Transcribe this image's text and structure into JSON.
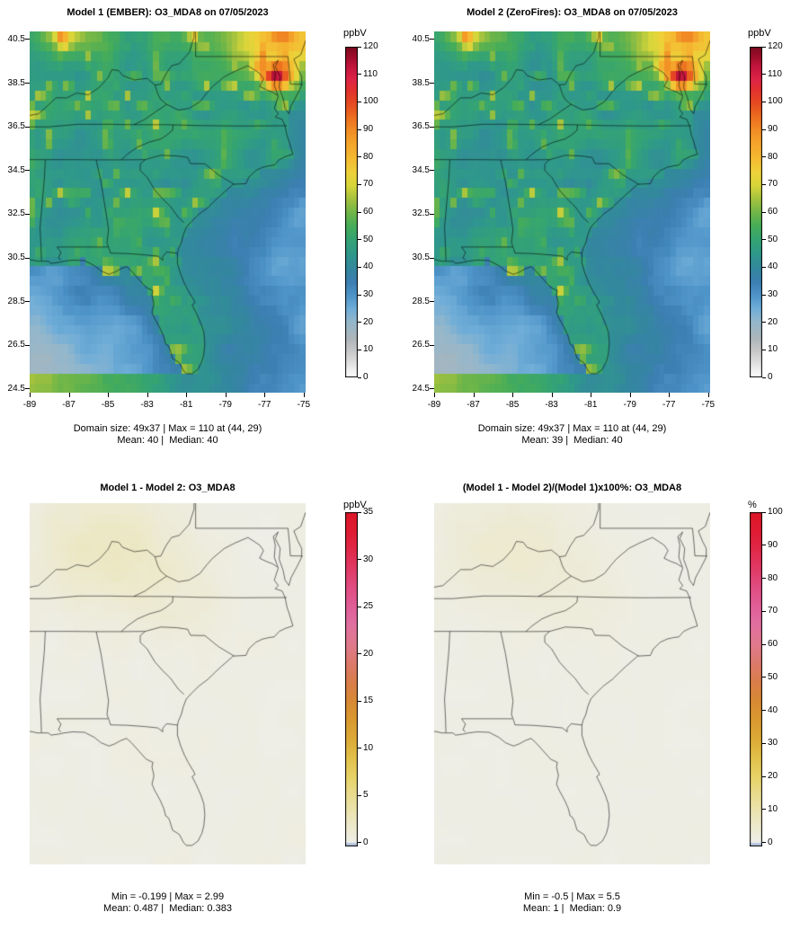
{
  "figure": {
    "background": "#ffffff"
  },
  "chart_data": [
    {
      "type": "heatmap",
      "position": "top-left",
      "title": "Model 1 (EMBER): O3_MDA8 on 07/05/2023",
      "model": "Model 1 (EMBER)",
      "variable": "O3_MDA8",
      "date": "07/05/2023",
      "grid_cols": 49,
      "grid_rows": 37,
      "field": "o3_model1",
      "x": {
        "ticks": [
          -89,
          -87,
          -85,
          -83,
          -81,
          -79,
          -77,
          -75
        ],
        "range": [
          -89.0,
          -74.9
        ]
      },
      "y": {
        "ticks": [
          24.5,
          26.5,
          28.5,
          30.5,
          32.5,
          34.5,
          36.5,
          38.5,
          40.5
        ],
        "range": [
          24.33,
          40.87
        ]
      },
      "colorbar": {
        "label": "ppbV",
        "min": 0,
        "max": 120,
        "ticks": [
          0,
          10,
          20,
          30,
          40,
          50,
          60,
          70,
          80,
          90,
          100,
          110,
          120
        ],
        "stops": [
          [
            0,
            "#ffffff"
          ],
          [
            0.04,
            "#e3e3e3"
          ],
          [
            0.08,
            "#c8c8c8"
          ],
          [
            0.12,
            "#adb5ba"
          ],
          [
            0.17,
            "#93b7cc"
          ],
          [
            0.21,
            "#6fadd8"
          ],
          [
            0.25,
            "#4e94c8"
          ],
          [
            0.29,
            "#3c7fb2"
          ],
          [
            0.33,
            "#33879e"
          ],
          [
            0.375,
            "#2f988b"
          ],
          [
            0.42,
            "#35a472"
          ],
          [
            0.46,
            "#47ad58"
          ],
          [
            0.5,
            "#71b648"
          ],
          [
            0.54,
            "#a3c23e"
          ],
          [
            0.58,
            "#d6d63a"
          ],
          [
            0.62,
            "#eed23a"
          ],
          [
            0.66,
            "#f4bc32"
          ],
          [
            0.71,
            "#f4a42b"
          ],
          [
            0.75,
            "#f18c25"
          ],
          [
            0.79,
            "#ec6c1f"
          ],
          [
            0.83,
            "#e64b22"
          ],
          [
            0.87,
            "#e2312f"
          ],
          [
            0.9,
            "#df2546"
          ],
          [
            0.94,
            "#c4163e"
          ],
          [
            0.97,
            "#a00d2c"
          ],
          [
            1,
            "#7c0a20"
          ]
        ]
      },
      "stats": {
        "domain_size": "49x37",
        "max": 110,
        "max_location_grid": "(44, 29)",
        "mean": 40,
        "median": 40
      },
      "caption1": "Domain size: 49x37 | Max = 110 at (44, 29)",
      "caption2": "Mean: 40 |  Median: 40",
      "notes": "Ozone MDA8 raster: teal/green 40-55 over land with yellow 60-75 patches, blue 25-40 offshore Atlantic, gray 5-20 over Gulf, orange-red 80-110 blob near Chesapeake Bay, max 110"
    },
    {
      "type": "heatmap",
      "position": "top-right",
      "title": "Model 2 (ZeroFires): O3_MDA8 on 07/05/2023",
      "model": "Model 2 (ZeroFires)",
      "variable": "O3_MDA8",
      "date": "07/05/2023",
      "grid_cols": 49,
      "grid_rows": 37,
      "field": "o3_model2",
      "x": {
        "ticks": [
          -89,
          -87,
          -85,
          -83,
          -81,
          -79,
          -77,
          -75
        ],
        "range": [
          -89.0,
          -74.9
        ]
      },
      "y": {
        "ticks": [
          24.5,
          26.5,
          28.5,
          30.5,
          32.5,
          34.5,
          36.5,
          38.5,
          40.5
        ],
        "range": [
          24.33,
          40.87
        ]
      },
      "colorbar": {
        "label": "ppbV",
        "min": 0,
        "max": 120,
        "ticks": [
          0,
          10,
          20,
          30,
          40,
          50,
          60,
          70,
          80,
          90,
          100,
          110,
          120
        ],
        "stops": [
          [
            0,
            "#ffffff"
          ],
          [
            0.04,
            "#e3e3e3"
          ],
          [
            0.08,
            "#c8c8c8"
          ],
          [
            0.12,
            "#adb5ba"
          ],
          [
            0.17,
            "#93b7cc"
          ],
          [
            0.21,
            "#6fadd8"
          ],
          [
            0.25,
            "#4e94c8"
          ],
          [
            0.29,
            "#3c7fb2"
          ],
          [
            0.33,
            "#33879e"
          ],
          [
            0.375,
            "#2f988b"
          ],
          [
            0.42,
            "#35a472"
          ],
          [
            0.46,
            "#47ad58"
          ],
          [
            0.5,
            "#71b648"
          ],
          [
            0.54,
            "#a3c23e"
          ],
          [
            0.58,
            "#d6d63a"
          ],
          [
            0.62,
            "#eed23a"
          ],
          [
            0.66,
            "#f4bc32"
          ],
          [
            0.71,
            "#f4a42b"
          ],
          [
            0.75,
            "#f18c25"
          ],
          [
            0.79,
            "#ec6c1f"
          ],
          [
            0.83,
            "#e64b22"
          ],
          [
            0.87,
            "#e2312f"
          ],
          [
            0.9,
            "#df2546"
          ],
          [
            0.94,
            "#c4163e"
          ],
          [
            0.97,
            "#a00d2c"
          ],
          [
            1,
            "#7c0a20"
          ]
        ]
      },
      "stats": {
        "domain_size": "49x37",
        "max": 110,
        "max_location_grid": "(44, 29)",
        "mean": 39,
        "median": 40
      },
      "caption1": "Domain size: 49x37 | Max = 110 at (44, 29)",
      "caption2": "Mean: 39 |  Median: 40",
      "notes": "Nearly identical to Model 1; mean lower by 1 ppbV"
    },
    {
      "type": "heatmap",
      "position": "bottom-left",
      "title": "Model 1 - Model 2: O3_MDA8",
      "variable": "O3_MDA8",
      "grid_cols": 49,
      "grid_rows": 37,
      "field": "difference",
      "x": {
        "range": [
          -89.0,
          -74.9
        ]
      },
      "y": {
        "range": [
          24.33,
          40.87
        ]
      },
      "colorbar": {
        "label": "ppbV",
        "min": -0.4,
        "max": 35,
        "ticks": [
          0,
          5,
          10,
          15,
          20,
          25,
          30,
          35
        ],
        "under_color": "#b8c7e2",
        "stops": [
          [
            0,
            "#eeeee8"
          ],
          [
            0.04,
            "#edead2"
          ],
          [
            0.09,
            "#ebe4b4"
          ],
          [
            0.14,
            "#e9dd92"
          ],
          [
            0.2,
            "#e7d367"
          ],
          [
            0.26,
            "#e2c04a"
          ],
          [
            0.31,
            "#dcab38"
          ],
          [
            0.37,
            "#d99a30"
          ],
          [
            0.43,
            "#d88934"
          ],
          [
            0.49,
            "#d97d4c"
          ],
          [
            0.54,
            "#dc7a6a"
          ],
          [
            0.6,
            "#df7a8c"
          ],
          [
            0.66,
            "#e070a0"
          ],
          [
            0.71,
            "#e0609a"
          ],
          [
            0.77,
            "#e04e84"
          ],
          [
            0.83,
            "#e03a66"
          ],
          [
            0.89,
            "#e02848"
          ],
          [
            0.94,
            "#df1c34"
          ],
          [
            1,
            "#dd1626"
          ]
        ]
      },
      "stats": {
        "min": -0.199,
        "max": 2.99,
        "mean": 0.487,
        "median": 0.383
      },
      "caption1": "Min = -0.199 | Max = 2.99",
      "caption2": "Mean: 0.487 |  Median: 0.383",
      "notes": "Nearly uniform light gray (diff ~0-3 ppbV) with faint pale-yellow tint over the northwest/central inland area"
    },
    {
      "type": "heatmap",
      "position": "bottom-right",
      "title": "(Model 1 - Model 2)/(Model 1)x100%: O3_MDA8",
      "variable": "O3_MDA8",
      "grid_cols": 49,
      "grid_rows": 37,
      "field": "percent_difference",
      "x": {
        "range": [
          -89.0,
          -74.9
        ]
      },
      "y": {
        "range": [
          24.33,
          40.87
        ]
      },
      "colorbar": {
        "label": "%",
        "min": -1.2,
        "max": 100,
        "ticks": [
          0,
          10,
          20,
          30,
          40,
          50,
          60,
          70,
          80,
          90,
          100
        ],
        "under_color": "#b8c7e2",
        "stops": [
          [
            0,
            "#eeeee8"
          ],
          [
            0.04,
            "#edead2"
          ],
          [
            0.09,
            "#ebe4b4"
          ],
          [
            0.14,
            "#e9dd92"
          ],
          [
            0.2,
            "#e7d367"
          ],
          [
            0.26,
            "#e2c04a"
          ],
          [
            0.31,
            "#dcab38"
          ],
          [
            0.37,
            "#d99a30"
          ],
          [
            0.43,
            "#d88934"
          ],
          [
            0.49,
            "#d97d4c"
          ],
          [
            0.54,
            "#dc7a6a"
          ],
          [
            0.6,
            "#df7a8c"
          ],
          [
            0.66,
            "#e070a0"
          ],
          [
            0.71,
            "#e0609a"
          ],
          [
            0.77,
            "#e04e84"
          ],
          [
            0.83,
            "#e03a66"
          ],
          [
            0.89,
            "#e02848"
          ],
          [
            0.94,
            "#df1c34"
          ],
          [
            1,
            "#dd1626"
          ]
        ]
      },
      "stats": {
        "min": -0.5,
        "max": 5.5,
        "mean": 1,
        "median": 0.9
      },
      "caption1": "Min = -0.5 | Max = 5.5",
      "caption2": "Mean: 1 |  Median: 0.9",
      "notes": "Nearly uniform light gray (0-5.5 %) with very faint yellow tint in the north"
    }
  ]
}
